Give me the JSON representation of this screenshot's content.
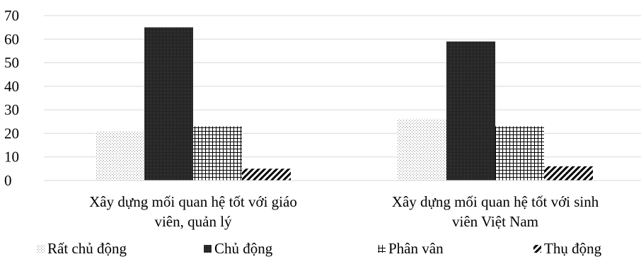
{
  "chart_data": {
    "type": "bar",
    "ylim": [
      0,
      70
    ],
    "yticks": [
      0,
      10,
      20,
      30,
      40,
      50,
      60,
      70
    ],
    "ytick_labels": [
      "0",
      "10",
      "20",
      "30",
      "40",
      "50",
      "60",
      "70"
    ],
    "grid": true,
    "legend_position": "bottom",
    "categories": [
      [
        "Xây dựng mối quan hệ tốt với giáo",
        "viên, quản lý"
      ],
      [
        "Xây dựng mối quan hệ tốt với sinh",
        "viên Việt Nam"
      ]
    ],
    "series": [
      {
        "name": "Rất chủ động",
        "pattern": "dots-sparse",
        "values": [
          21,
          26
        ]
      },
      {
        "name": "Chủ động",
        "pattern": "dark-dense",
        "values": [
          65,
          59
        ]
      },
      {
        "name": "Phân vân",
        "pattern": "grid",
        "values": [
          23,
          23
        ]
      },
      {
        "name": "Thụ động",
        "pattern": "diagonal",
        "values": [
          5,
          6
        ]
      }
    ],
    "colors": {
      "ink": "#000000",
      "gridline": "#d9d9d9"
    }
  }
}
